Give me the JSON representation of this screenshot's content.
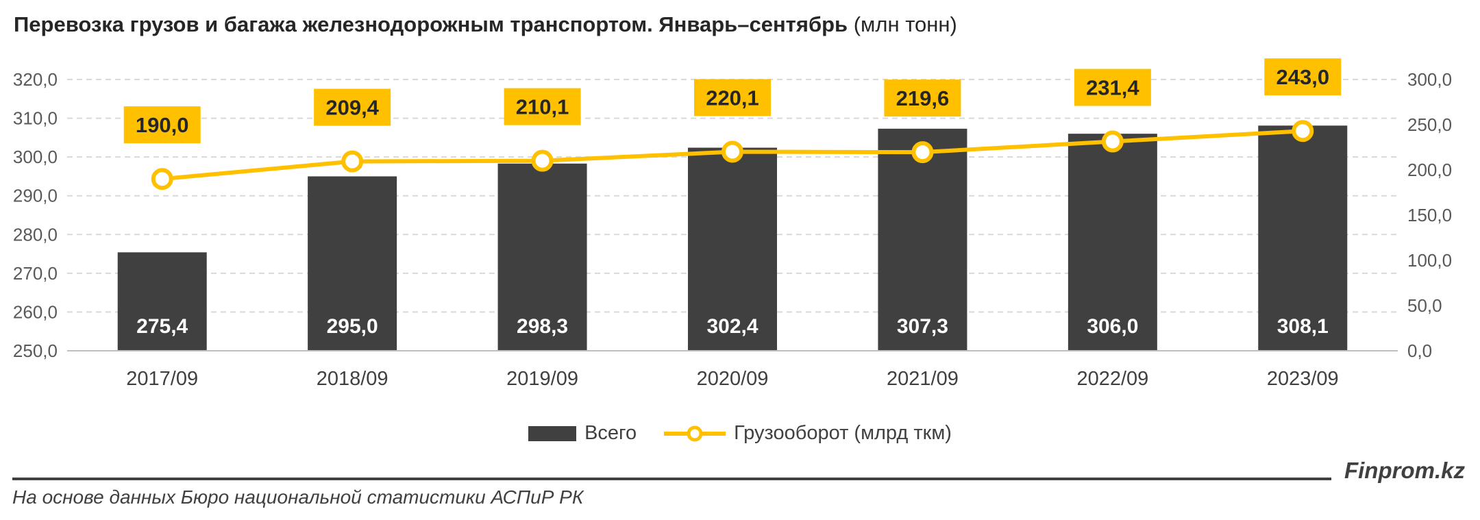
{
  "title_bold": "Перевозка грузов и багажа железнодорожным транспортом. Январь–сентябрь",
  "title_unit": "(млн тонн)",
  "brand": "Finprom.kz",
  "source": "На основе данных Бюро национальной статистики АСПиР РК",
  "colors": {
    "bar": "#404040",
    "line": "#FFC000",
    "label_box": "#FFC000",
    "grid": "#D9D9D9"
  },
  "chart_data": {
    "type": "bar",
    "categories": [
      "2017/09",
      "2018/09",
      "2019/09",
      "2020/09",
      "2021/09",
      "2022/09",
      "2023/09"
    ],
    "series": [
      {
        "name": "Всего",
        "type": "bar",
        "axis": "left",
        "values": [
          275.4,
          295.0,
          298.3,
          302.4,
          307.3,
          306.0,
          308.1
        ],
        "labels": [
          "275,4",
          "295,0",
          "298,3",
          "302,4",
          "307,3",
          "306,0",
          "308,1"
        ]
      },
      {
        "name": "Грузооборот (млрд ткм)",
        "type": "line",
        "axis": "right",
        "values": [
          190.0,
          209.4,
          210.1,
          220.1,
          219.6,
          231.4,
          243.0
        ],
        "labels": [
          "190,0",
          "209,4",
          "210,1",
          "220,1",
          "219,6",
          "231,4",
          "243,0"
        ]
      }
    ],
    "y_left": {
      "min": 250,
      "max": 320,
      "ticks": [
        "250,0",
        "260,0",
        "270,0",
        "280,0",
        "290,0",
        "300,0",
        "310,0",
        "320,0"
      ]
    },
    "y_right": {
      "min": 0,
      "max": 300,
      "ticks": [
        "0,0",
        "50,0",
        "100,0",
        "150,0",
        "200,0",
        "250,0",
        "300,0"
      ]
    },
    "grid": true,
    "legend_position": "bottom"
  }
}
